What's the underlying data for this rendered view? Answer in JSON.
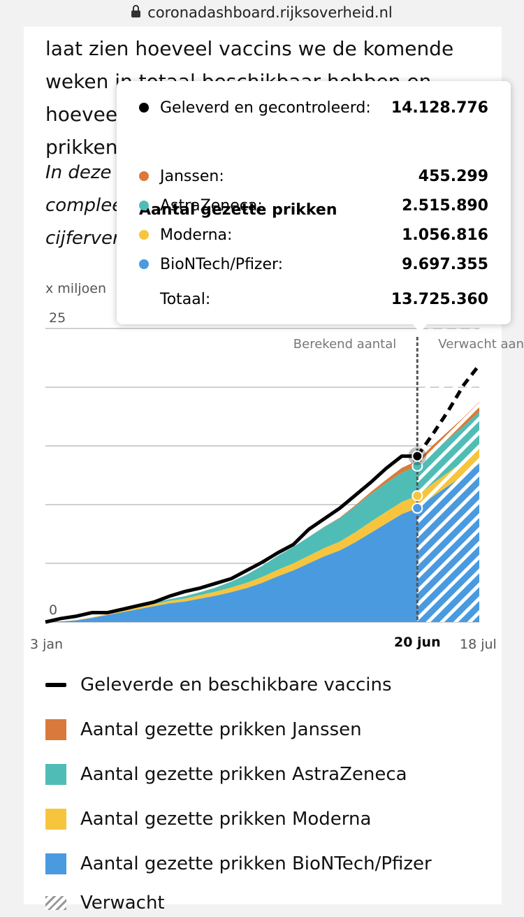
{
  "browser": {
    "url": "coronadashboard.rijksoverheid.nl"
  },
  "intro": {
    "line1": "laat zien hoeveel vaccins we de komende",
    "line2": "weken in totaal beschikbaar hebben en hoeveel",
    "line3": "prikken"
  },
  "note": {
    "line1": "In deze gr",
    "line2": "compleet",
    "line3": "cijferverа"
  },
  "tooltip": {
    "delivered_label": "Geleverd en gecontroleerd:",
    "delivered_value": "14.128.776",
    "heading": "Aantal gezette prikken",
    "rows": [
      {
        "label": "Janssen:",
        "value": "455.299",
        "color": "#d97a3c"
      },
      {
        "label": "AstraZeneca:",
        "value": "2.515.890",
        "color": "#4fbdb5"
      },
      {
        "label": "Moderna:",
        "value": "1.056.816",
        "color": "#f7c53d"
      },
      {
        "label": "BioNTech/Pfizer:",
        "value": "9.697.355",
        "color": "#4a9ae0"
      }
    ],
    "total_label": "Totaal:",
    "total_value": "13.725.360"
  },
  "chart_data": {
    "type": "area",
    "ylabel": "x miljoen",
    "ylim": [
      0,
      25
    ],
    "y_ticks": [
      "0",
      "25"
    ],
    "x_ticks": [
      "3 jan",
      "20 jun",
      "18 jul"
    ],
    "annotation_left": "Berekend aantal",
    "annotation_right": "Verwacht aant",
    "x_weeks": [
      0,
      1,
      2,
      3,
      4,
      5,
      6,
      7,
      8,
      9,
      10,
      11,
      12,
      13,
      14,
      15,
      16,
      17,
      18,
      19,
      20,
      21,
      22,
      23,
      24,
      25,
      26,
      27,
      28
    ],
    "series": [
      {
        "name": "BioNTech/Pfizer",
        "color": "#4a9ae0",
        "values": [
          0,
          0.05,
          0.15,
          0.35,
          0.6,
          0.85,
          1.1,
          1.35,
          1.6,
          1.75,
          2.0,
          2.25,
          2.55,
          2.9,
          3.35,
          3.9,
          4.4,
          5.0,
          5.6,
          6.1,
          6.8,
          7.6,
          8.4,
          9.2,
          9.7,
          10.7,
          11.6,
          12.5,
          13.5
        ]
      },
      {
        "name": "Moderna",
        "color": "#f7c53d",
        "values": [
          0,
          0,
          0.02,
          0.05,
          0.08,
          0.12,
          0.15,
          0.18,
          0.2,
          0.25,
          0.3,
          0.35,
          0.4,
          0.45,
          0.5,
          0.55,
          0.6,
          0.65,
          0.7,
          0.75,
          0.85,
          0.95,
          1.0,
          1.03,
          1.06,
          1.1,
          1.15,
          1.2,
          1.25
        ]
      },
      {
        "name": "AstraZeneca",
        "color": "#4fbdb5",
        "values": [
          0,
          0,
          0,
          0,
          0,
          0.02,
          0.05,
          0.1,
          0.15,
          0.2,
          0.25,
          0.35,
          0.5,
          0.7,
          0.95,
          1.2,
          1.4,
          1.6,
          1.8,
          2.0,
          2.2,
          2.35,
          2.45,
          2.5,
          2.52,
          2.7,
          2.85,
          3.0,
          3.15
        ]
      },
      {
        "name": "Janssen",
        "color": "#d97a3c",
        "values": [
          0,
          0,
          0,
          0,
          0,
          0,
          0,
          0,
          0,
          0,
          0,
          0,
          0,
          0,
          0,
          0,
          0,
          0,
          0.02,
          0.05,
          0.1,
          0.18,
          0.28,
          0.4,
          0.46,
          0.55,
          0.65,
          0.75,
          0.85
        ]
      }
    ],
    "line": {
      "name": "Geleverde en beschikbare vaccins",
      "values": [
        0,
        0.3,
        0.5,
        0.8,
        0.8,
        1.1,
        1.4,
        1.7,
        2.2,
        2.6,
        2.9,
        3.3,
        3.7,
        4.4,
        5.1,
        5.9,
        6.6,
        7.9,
        8.8,
        9.7,
        10.8,
        11.9,
        13.1,
        14.13,
        14.13,
        16.0,
        18.0,
        20.2,
        21.9
      ]
    },
    "projection_start_week": 24
  },
  "legend": {
    "items": [
      {
        "label": "Geleverde en beschikbare vaccins"
      },
      {
        "label": "Aantal gezette prikken Janssen",
        "color": "#d97a3c"
      },
      {
        "label": "Aantal gezette prikken AstraZeneca",
        "color": "#4fbdb5"
      },
      {
        "label": "Aantal gezette prikken Moderna",
        "color": "#f7c53d"
      },
      {
        "label": "Aantal gezette prikken BioNTech/Pfizer",
        "color": "#4a9ae0"
      },
      {
        "label": "Verwacht"
      }
    ]
  }
}
